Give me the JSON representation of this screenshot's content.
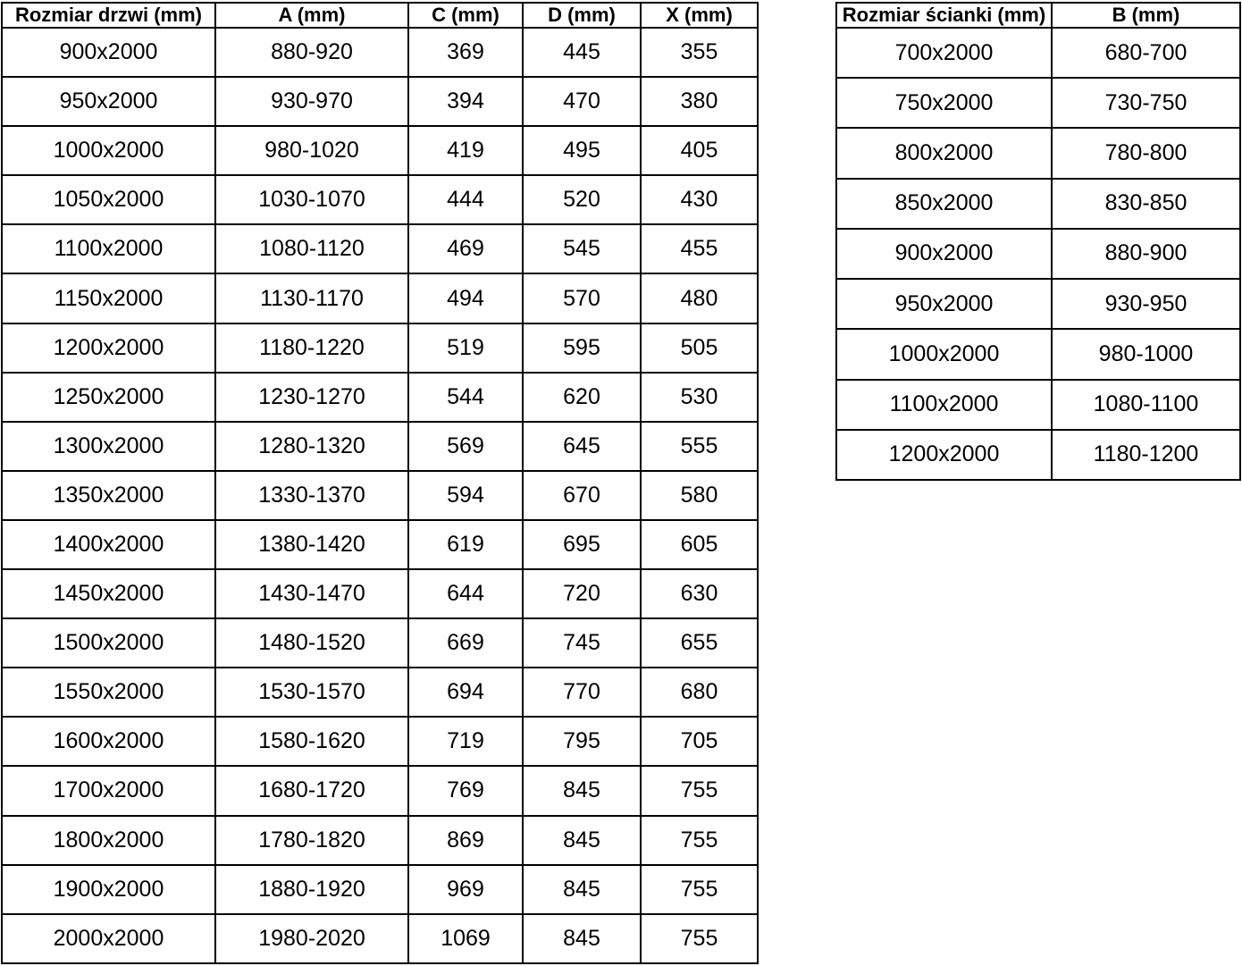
{
  "colors": {
    "background": "#ffffff",
    "border": "#000000",
    "text": "#000000"
  },
  "left_table": {
    "name": "door-dimensions",
    "headers": [
      "Rozmiar drzwi (mm)",
      "A (mm)",
      "C (mm)",
      "D (mm)",
      "X (mm)"
    ],
    "rows": [
      [
        "900x2000",
        "880-920",
        "369",
        "445",
        "355"
      ],
      [
        "950x2000",
        "930-970",
        "394",
        "470",
        "380"
      ],
      [
        "1000x2000",
        "980-1020",
        "419",
        "495",
        "405"
      ],
      [
        "1050x2000",
        "1030-1070",
        "444",
        "520",
        "430"
      ],
      [
        "1100x2000",
        "1080-1120",
        "469",
        "545",
        "455"
      ],
      [
        "1150x2000",
        "1130-1170",
        "494",
        "570",
        "480"
      ],
      [
        "1200x2000",
        "1180-1220",
        "519",
        "595",
        "505"
      ],
      [
        "1250x2000",
        "1230-1270",
        "544",
        "620",
        "530"
      ],
      [
        "1300x2000",
        "1280-1320",
        "569",
        "645",
        "555"
      ],
      [
        "1350x2000",
        "1330-1370",
        "594",
        "670",
        "580"
      ],
      [
        "1400x2000",
        "1380-1420",
        "619",
        "695",
        "605"
      ],
      [
        "1450x2000",
        "1430-1470",
        "644",
        "720",
        "630"
      ],
      [
        "1500x2000",
        "1480-1520",
        "669",
        "745",
        "655"
      ],
      [
        "1550x2000",
        "1530-1570",
        "694",
        "770",
        "680"
      ],
      [
        "1600x2000",
        "1580-1620",
        "719",
        "795",
        "705"
      ],
      [
        "1700x2000",
        "1680-1720",
        "769",
        "845",
        "755"
      ],
      [
        "1800x2000",
        "1780-1820",
        "869",
        "845",
        "755"
      ],
      [
        "1900x2000",
        "1880-1920",
        "969",
        "845",
        "755"
      ],
      [
        "2000x2000",
        "1980-2020",
        "1069",
        "845",
        "755"
      ]
    ]
  },
  "right_table": {
    "name": "wall-dimensions",
    "headers": [
      "Rozmiar ścianki (mm)",
      "B (mm)"
    ],
    "rows": [
      [
        "700x2000",
        "680-700"
      ],
      [
        "750x2000",
        "730-750"
      ],
      [
        "800x2000",
        "780-800"
      ],
      [
        "850x2000",
        "830-850"
      ],
      [
        "900x2000",
        "880-900"
      ],
      [
        "950x2000",
        "930-950"
      ],
      [
        "1000x2000",
        "980-1000"
      ],
      [
        "1100x2000",
        "1080-1100"
      ],
      [
        "1200x2000",
        "1180-1200"
      ]
    ]
  }
}
